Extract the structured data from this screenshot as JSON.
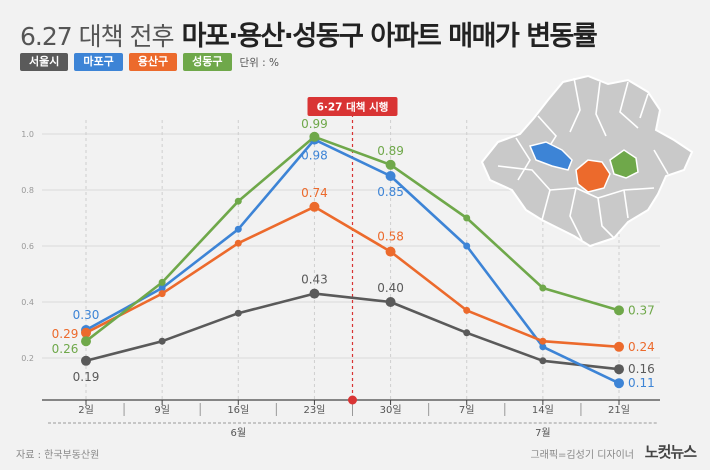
{
  "header": {
    "title_light": "6.27 대책 전후",
    "title_bold": "마포·용산·성동구 아파트 매매가 변동률"
  },
  "legend": [
    {
      "label": "서울시",
      "color": "#5a5a5a"
    },
    {
      "label": "마포구",
      "color": "#3d84d6"
    },
    {
      "label": "용산구",
      "color": "#ec6a2c"
    },
    {
      "label": "성동구",
      "color": "#6fa84a"
    }
  ],
  "unit": "단위 : %",
  "marker_label": "6·27 대책 시행",
  "footer": {
    "source": "자료 : 한국부동산원",
    "credit": "그래픽=김성기 디자이너",
    "logo": "노컷뉴스"
  },
  "chart_data": {
    "type": "line",
    "categories": [
      "2일",
      "9일",
      "16일",
      "23일",
      "30일",
      "7일",
      "14일",
      "21일"
    ],
    "month_groups": [
      {
        "label": "6월",
        "start": 0,
        "end": 4
      },
      {
        "label": "7월",
        "start": 5,
        "end": 7
      }
    ],
    "yticks": [
      "0.2",
      "0.4",
      "0.6",
      "0.8",
      "1.0"
    ],
    "ylim": [
      0.05,
      1.05
    ],
    "grid": true,
    "event_between": [
      3,
      4
    ],
    "series": [
      {
        "name": "서울시",
        "color": "#5a5a5a",
        "values": [
          0.19,
          0.26,
          0.36,
          0.43,
          0.4,
          0.29,
          0.19,
          0.16
        ],
        "labels": [
          {
            "i": 0,
            "text": "0.19"
          },
          {
            "i": 3,
            "text": "0.43"
          },
          {
            "i": 4,
            "text": "0.40"
          },
          {
            "i": 7,
            "text": "0.16"
          }
        ]
      },
      {
        "name": "마포구",
        "color": "#3d84d6",
        "values": [
          0.3,
          0.45,
          0.66,
          0.98,
          0.85,
          0.6,
          0.24,
          0.11
        ],
        "labels": [
          {
            "i": 0,
            "text": "0.30"
          },
          {
            "i": 3,
            "text": "0.98"
          },
          {
            "i": 4,
            "text": "0.85"
          },
          {
            "i": 7,
            "text": "0.11"
          }
        ]
      },
      {
        "name": "용산구",
        "color": "#ec6a2c",
        "values": [
          0.29,
          0.43,
          0.61,
          0.74,
          0.58,
          0.37,
          0.26,
          0.24
        ],
        "labels": [
          {
            "i": 0,
            "text": "0.29"
          },
          {
            "i": 3,
            "text": "0.74"
          },
          {
            "i": 4,
            "text": "0.58"
          },
          {
            "i": 7,
            "text": "0.24"
          }
        ]
      },
      {
        "name": "성동구",
        "color": "#6fa84a",
        "values": [
          0.26,
          0.47,
          0.76,
          0.99,
          0.89,
          0.7,
          0.45,
          0.37
        ],
        "labels": [
          {
            "i": 0,
            "text": "0.26"
          },
          {
            "i": 3,
            "text": "0.99"
          },
          {
            "i": 4,
            "text": "0.89"
          },
          {
            "i": 7,
            "text": "0.37"
          }
        ]
      }
    ]
  }
}
